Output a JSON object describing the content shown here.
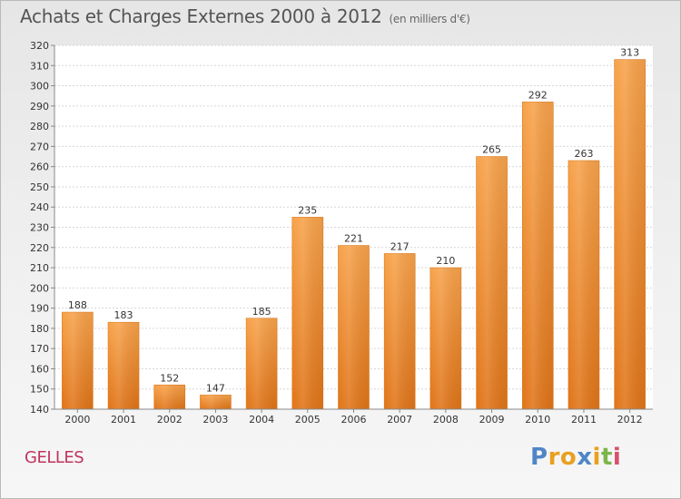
{
  "header": {
    "title": "Achats et Charges Externes 2000 à 2012",
    "unit": "(en milliers d'€)"
  },
  "footer": {
    "commune": "GELLES",
    "brand_letters": [
      "P",
      "r",
      "o",
      "x",
      "i",
      "t",
      "i"
    ],
    "brand_colors": [
      "#4f86c6",
      "#e8a020",
      "#e8a020",
      "#4f86c6",
      "#e8a020",
      "#7ab648",
      "#d94f6b"
    ]
  },
  "chart_data": {
    "type": "bar",
    "title": "Achats et Charges Externes 2000 à 2012",
    "xlabel": "",
    "ylabel": "",
    "categories": [
      "2000",
      "2001",
      "2002",
      "2003",
      "2004",
      "2005",
      "2006",
      "2007",
      "2008",
      "2009",
      "2010",
      "2011",
      "2012"
    ],
    "values": [
      188,
      183,
      152,
      147,
      185,
      235,
      221,
      217,
      210,
      265,
      292,
      263,
      313
    ],
    "ylim": [
      140,
      320
    ],
    "yticks": [
      140,
      150,
      160,
      170,
      180,
      190,
      200,
      210,
      220,
      230,
      240,
      250,
      260,
      270,
      280,
      290,
      300,
      310,
      320
    ],
    "grid": true,
    "bar_color": "#f08c28"
  }
}
